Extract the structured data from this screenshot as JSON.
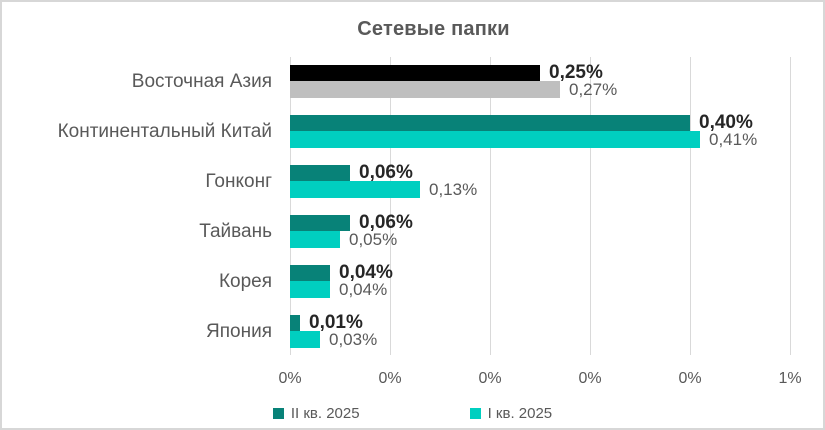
{
  "frame": {
    "background_color": "#FFFFFF",
    "border_color": "#D7D7D7"
  },
  "chart_data": {
    "type": "bar",
    "orientation": "horizontal",
    "title": "Сетевые папки",
    "categories": [
      "Восточная Азия",
      "Континентальный Китай",
      "Гонконг",
      "Тайвань",
      "Корея",
      "Япония"
    ],
    "series": [
      {
        "name": "II кв. 2025",
        "legend_color": "#088278",
        "values_pct": [
          0.25,
          0.4,
          0.06,
          0.06,
          0.04,
          0.01
        ],
        "data_labels": [
          "0,25%",
          "0,40%",
          "0,06%",
          "0,06%",
          "0,04%",
          "0,01%"
        ],
        "bar_colors": [
          "#000000",
          "#088278",
          "#088278",
          "#088278",
          "#088278",
          "#088278"
        ]
      },
      {
        "name": "I кв. 2025",
        "legend_color": "#00CFC0",
        "values_pct": [
          0.27,
          0.41,
          0.13,
          0.05,
          0.04,
          0.03
        ],
        "data_labels": [
          "0,27%",
          "0,41%",
          "0,13%",
          "0,05%",
          "0,04%",
          "0,03%"
        ],
        "bar_colors": [
          "#BFBFBF",
          "#00CFC0",
          "#00CFC0",
          "#00CFC0",
          "#00CFC0",
          "#00CFC0"
        ]
      }
    ],
    "x_axis": {
      "min_pct": 0,
      "max_pct": 0.5,
      "tick_step_pct": 0.1,
      "tick_labels": [
        "0%",
        "0%",
        "0%",
        "0%",
        "0%",
        "1%"
      ],
      "gridlines": true,
      "gridline_color": "#D9D9D9"
    },
    "value_unit": "%",
    "legend_position": "bottom",
    "text_colors": {
      "title": "#595959",
      "category_labels": "#595959",
      "primary_value_labels": "#262626",
      "secondary_value_labels": "#595959",
      "axis_ticks": "#595959",
      "legend": "#595959"
    }
  }
}
